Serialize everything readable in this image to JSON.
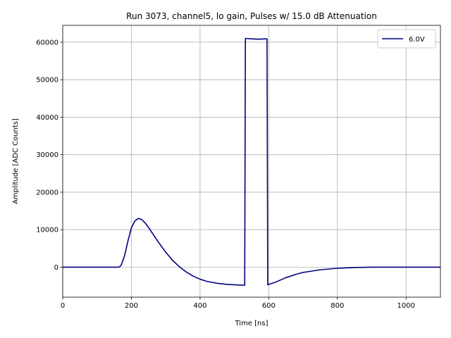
{
  "chart_data": {
    "type": "line",
    "title": "Run 3073, channel5, lo gain, Pulses w/ 15.0 dB Attenuation",
    "xlabel": "Time [ns]",
    "ylabel": "Amplitude [ADC Counts]",
    "xlim": [
      0,
      1100
    ],
    "ylim": [
      -8000,
      64500
    ],
    "xticks": [
      0,
      200,
      400,
      600,
      800,
      1000
    ],
    "yticks": [
      0,
      10000,
      20000,
      30000,
      40000,
      50000,
      60000
    ],
    "grid": true,
    "legend_position": "top-right",
    "series": [
      {
        "name": "6.0V",
        "color": "#000080",
        "x": [
          0,
          160,
          165,
          170,
          180,
          190,
          200,
          210,
          220,
          230,
          240,
          250,
          260,
          280,
          300,
          320,
          340,
          360,
          380,
          400,
          420,
          450,
          480,
          500,
          520,
          530,
          532,
          535,
          550,
          570,
          590,
          595,
          597,
          600,
          620,
          650,
          680,
          700,
          750,
          800,
          850,
          900,
          1000,
          1100
        ],
        "y": [
          0,
          0,
          50,
          500,
          3000,
          7000,
          10500,
          12300,
          13000,
          12700,
          11800,
          10600,
          9200,
          6500,
          4000,
          1800,
          100,
          -1300,
          -2400,
          -3200,
          -3800,
          -4300,
          -4600,
          -4700,
          -4800,
          -4800,
          61000,
          61000,
          60900,
          60800,
          60900,
          60900,
          -4700,
          -4600,
          -4000,
          -2800,
          -1900,
          -1400,
          -700,
          -300,
          -100,
          0,
          0,
          0
        ]
      }
    ]
  }
}
